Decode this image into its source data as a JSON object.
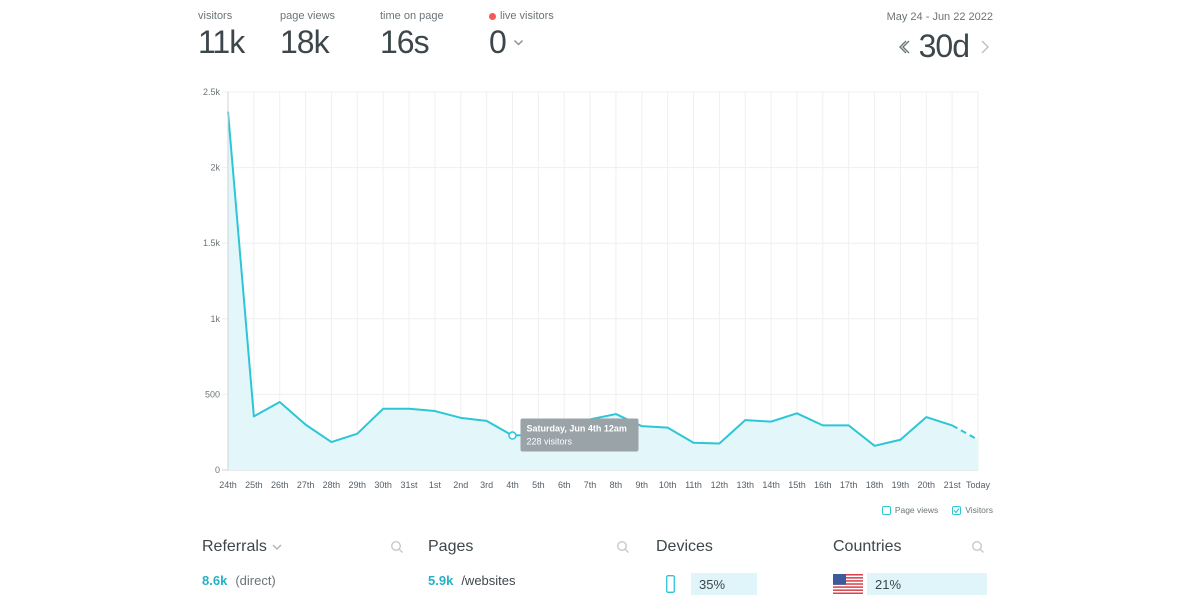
{
  "stats": [
    {
      "label": "visitors",
      "value": "11k"
    },
    {
      "label": "page views",
      "value": "18k"
    },
    {
      "label": "time on page",
      "value": "16s"
    },
    {
      "label": "live visitors",
      "value": "0"
    }
  ],
  "range": {
    "dates": "May 24 - Jun 22 2022",
    "value": "30d"
  },
  "colors": {
    "accent": "#2cc6d6",
    "fill": "#e3f6fa",
    "live": "#f05a5a",
    "tooltip_bg": "#9aa3a8"
  },
  "chart_data": {
    "type": "area",
    "categories": [
      "24th",
      "25th",
      "26th",
      "27th",
      "28th",
      "29th",
      "30th",
      "31st",
      "1st",
      "2nd",
      "3rd",
      "4th",
      "5th",
      "6th",
      "7th",
      "8th",
      "9th",
      "10th",
      "11th",
      "12th",
      "13th",
      "14th",
      "15th",
      "16th",
      "17th",
      "18th",
      "19th",
      "20th",
      "21st",
      "Today"
    ],
    "series": [
      {
        "name": "Visitors",
        "values": [
          2370,
          355,
          450,
          300,
          185,
          240,
          405,
          405,
          390,
          345,
          325,
          228,
          235,
          280,
          335,
          370,
          290,
          280,
          180,
          175,
          330,
          320,
          375,
          295,
          295,
          160,
          200,
          350,
          295,
          200
        ]
      }
    ],
    "ylim": [
      0,
      2500
    ],
    "yticks": [
      "0",
      "500",
      "1k",
      "1.5k",
      "2k",
      "2.5k"
    ],
    "ytick_values": [
      0,
      500,
      1000,
      1500,
      2000,
      2500
    ],
    "grid": true,
    "tooltip": {
      "index": 11,
      "title": "Saturday, Jun 4th 12am",
      "text": "228 visitors"
    },
    "legend": [
      {
        "name": "Page views",
        "checked": false
      },
      {
        "name": "Visitors",
        "checked": true
      }
    ],
    "legend_position": "bottom-right"
  },
  "panels": {
    "referrals": {
      "title": "Referrals",
      "count": "8.6k",
      "label": "(direct)"
    },
    "pages": {
      "title": "Pages",
      "count": "5.9k",
      "label": "/websites"
    },
    "devices": {
      "title": "Devices",
      "percent": "35%",
      "icon": "mobile-phone-icon"
    },
    "countries": {
      "title": "Countries",
      "percent": "21%",
      "icon": "us-flag-icon"
    }
  }
}
